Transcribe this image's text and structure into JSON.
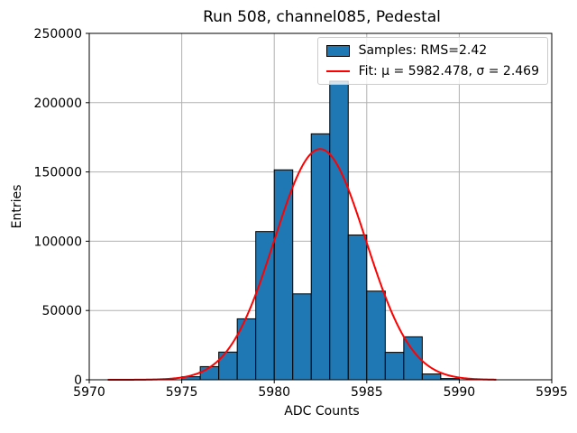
{
  "chart_data": {
    "type": "bar",
    "title": "Run 508, channel085, Pedestal",
    "xlabel": "ADC Counts",
    "ylabel": "Entries",
    "xlim": [
      5970,
      5995
    ],
    "ylim": [
      0,
      250000
    ],
    "xticks": [
      5970,
      5975,
      5980,
      5985,
      5990,
      5995
    ],
    "yticks": [
      0,
      50000,
      100000,
      150000,
      200000,
      250000
    ],
    "grid": true,
    "grid_color": "#b0b0b0",
    "bar_color": "#1f77b4",
    "bar_edge_color": "#000000",
    "bin_width": 1,
    "bin_left_edges": [
      5971,
      5972,
      5973,
      5974,
      5975,
      5976,
      5977,
      5978,
      5979,
      5980,
      5981,
      5982,
      5983,
      5984,
      5985,
      5986,
      5987,
      5988,
      5989,
      5990,
      5991
    ],
    "values": [
      0,
      0,
      0,
      0,
      2200,
      9500,
      20000,
      44000,
      107000,
      151500,
      62000,
      177500,
      215500,
      104500,
      64000,
      19800,
      31000,
      4200,
      900,
      0,
      0
    ],
    "fit": {
      "type": "gaussian",
      "mu": 5982.478,
      "sigma": 2.469,
      "amplitude": 166500,
      "color": "#ff0000",
      "x_range": [
        5971,
        5992
      ]
    },
    "legend": {
      "position": "upper right",
      "entries": [
        {
          "label": "Samples: RMS=2.42",
          "swatch": "bar"
        },
        {
          "label": "Fit: μ = 5982.478, σ = 2.469",
          "swatch": "line"
        }
      ]
    }
  }
}
